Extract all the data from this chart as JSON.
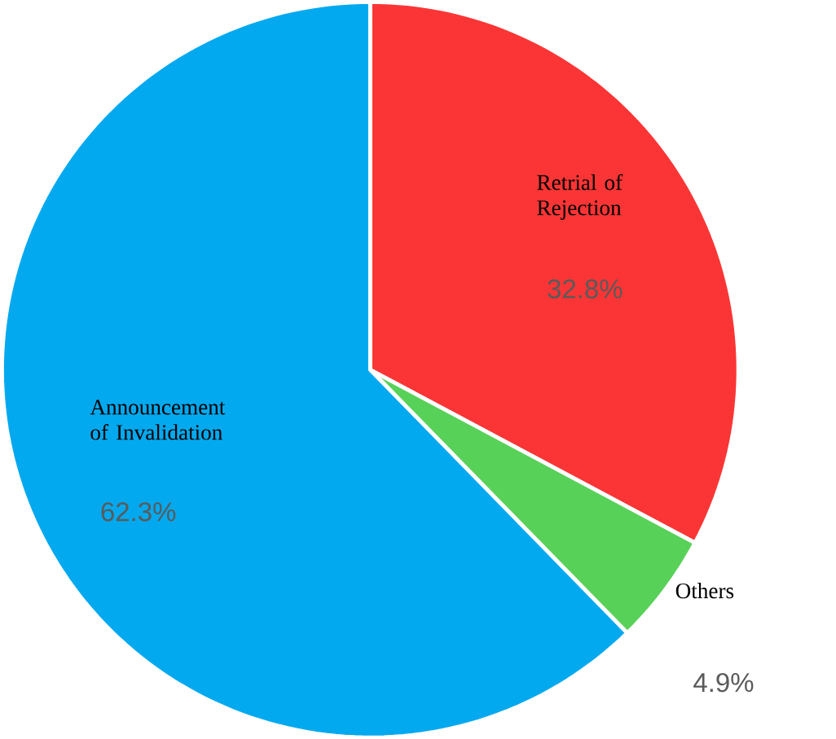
{
  "chart_data": {
    "type": "pie",
    "categories": [
      "Retrial of Rejection",
      "Others",
      "Announcement of Invalidation"
    ],
    "values": [
      32.8,
      4.9,
      62.3
    ],
    "colors": [
      "#fb3535",
      "#58d158",
      "#03a9ef"
    ],
    "value_labels": [
      "32.8%",
      "4.9%",
      "62.3%"
    ]
  }
}
